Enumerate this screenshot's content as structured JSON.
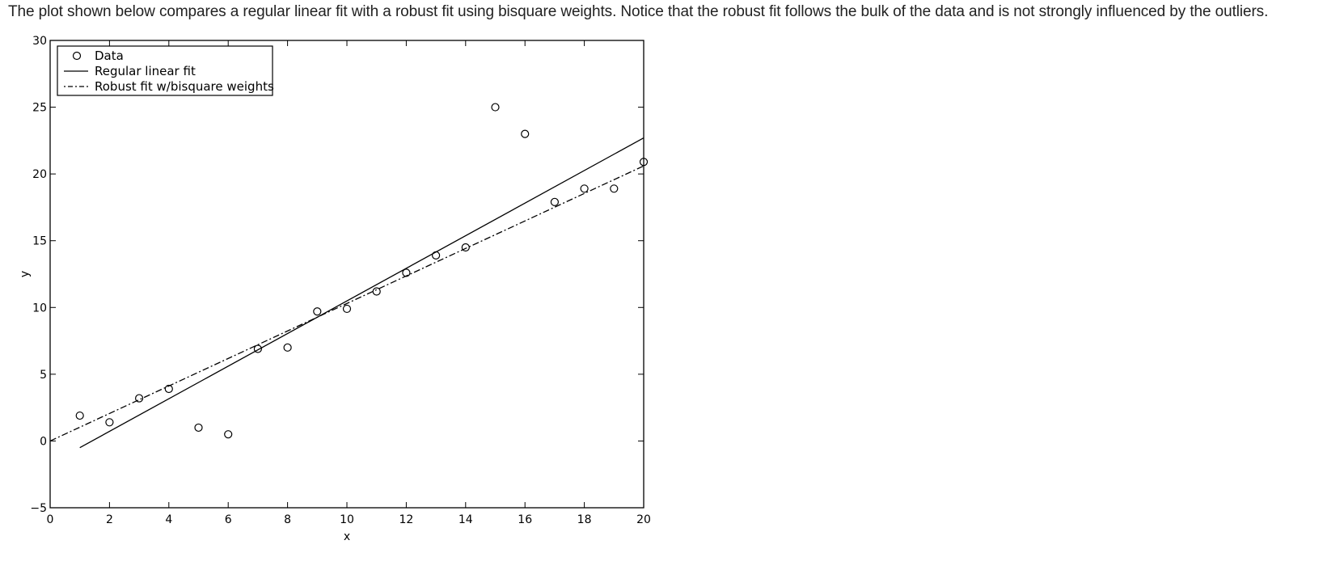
{
  "caption": "The plot shown below compares a regular linear fit with a robust fit using bisquare weights. Notice that the robust fit follows the bulk of the data and is not strongly influenced by the outliers.",
  "chart_data": {
    "type": "scatter",
    "title": "",
    "xlabel": "x",
    "ylabel": "y",
    "xlim": [
      0,
      20
    ],
    "ylim": [
      -5,
      30
    ],
    "x_ticks": [
      0,
      2,
      4,
      6,
      8,
      10,
      12,
      14,
      16,
      18,
      20
    ],
    "y_ticks": [
      -5,
      0,
      5,
      10,
      15,
      20,
      25,
      30
    ],
    "grid": false,
    "legend_placement": "top-left",
    "legend": [
      {
        "label": "Data",
        "style": "circle"
      },
      {
        "label": "Regular linear fit",
        "style": "solid"
      },
      {
        "label": "Robust fit w/bisquare weights",
        "style": "dashdot"
      }
    ],
    "series": [
      {
        "name": "Data",
        "kind": "points",
        "x": [
          1,
          2,
          3,
          4,
          5,
          6,
          7,
          8,
          9,
          10,
          11,
          12,
          13,
          14,
          15,
          16,
          17,
          18,
          19,
          20
        ],
        "y": [
          1.9,
          1.4,
          3.2,
          3.9,
          1.0,
          0.5,
          6.9,
          7.0,
          9.7,
          9.9,
          11.2,
          12.6,
          13.9,
          14.5,
          25.0,
          23.0,
          17.9,
          18.9,
          18.9,
          20.9
        ]
      },
      {
        "name": "Regular linear fit",
        "kind": "line",
        "x": [
          1,
          20
        ],
        "y": [
          -0.5,
          22.7
        ]
      },
      {
        "name": "Robust fit w/bisquare weights",
        "kind": "line",
        "x": [
          0,
          20
        ],
        "y": [
          0.0,
          20.6
        ]
      }
    ]
  }
}
